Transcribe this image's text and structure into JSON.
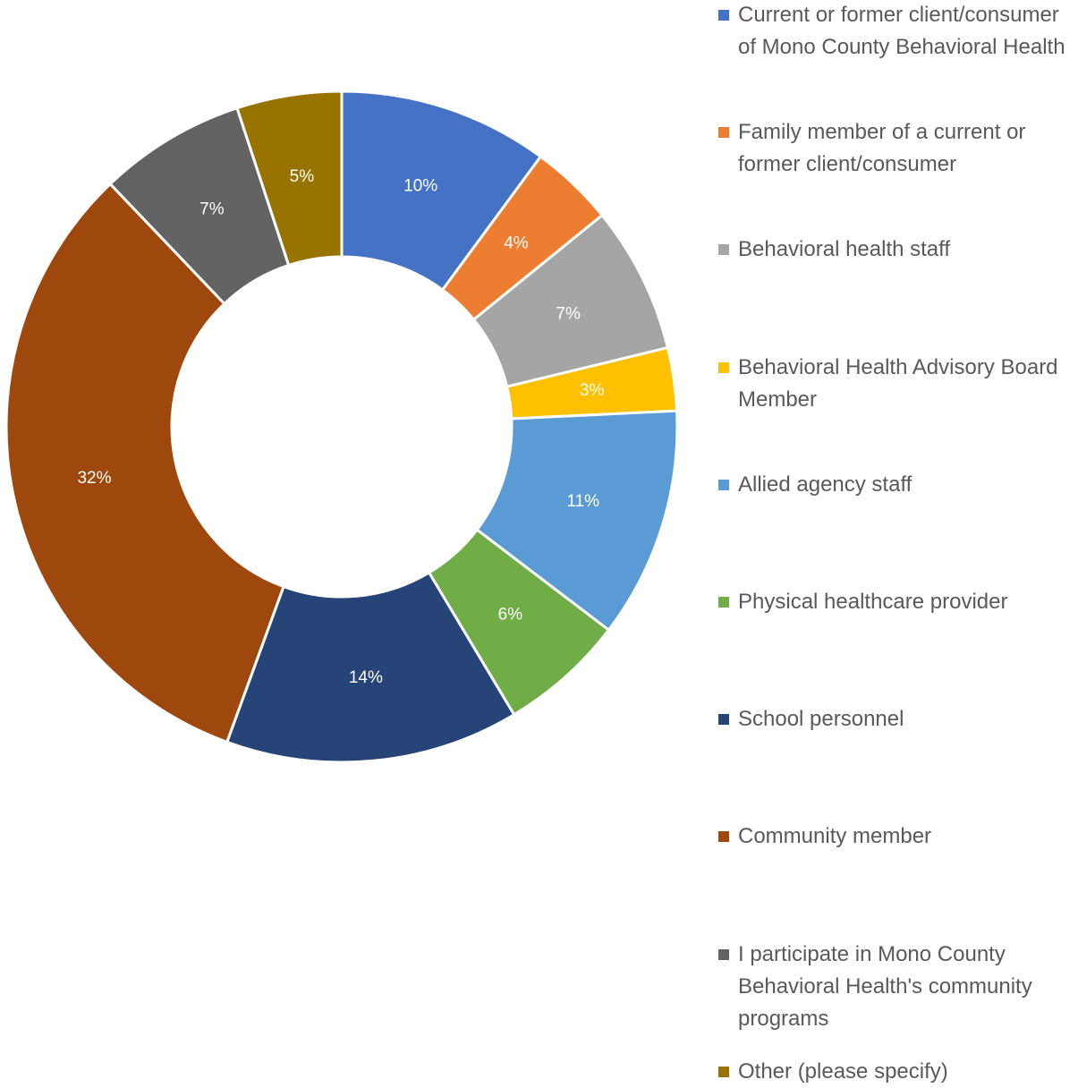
{
  "chart_data": {
    "type": "donut",
    "categories": [
      "Current or former client/consumer of Mono County Behavioral Health",
      "Family member of a current or former client/consumer",
      "Behavioral health staff",
      "Behavioral Health Advisory Board Member",
      "Allied agency staff",
      "Physical healthcare provider",
      "School personnel",
      "Community member",
      "I participate in Mono County Behavioral Health's community programs",
      "Other (please specify)"
    ],
    "values": [
      10,
      4,
      7,
      3,
      11,
      6,
      14,
      32,
      7,
      5
    ],
    "value_labels": [
      "10%",
      "4%",
      "7%",
      "3%",
      "11%",
      "6%",
      "14%",
      "32%",
      "7%",
      "5%"
    ],
    "colors": [
      "#4472c4",
      "#ed7d31",
      "#a5a5a5",
      "#ffc000",
      "#5b9bd5",
      "#70ad47",
      "#264478",
      "#9e480e",
      "#636363",
      "#997300"
    ],
    "legend": "right"
  }
}
